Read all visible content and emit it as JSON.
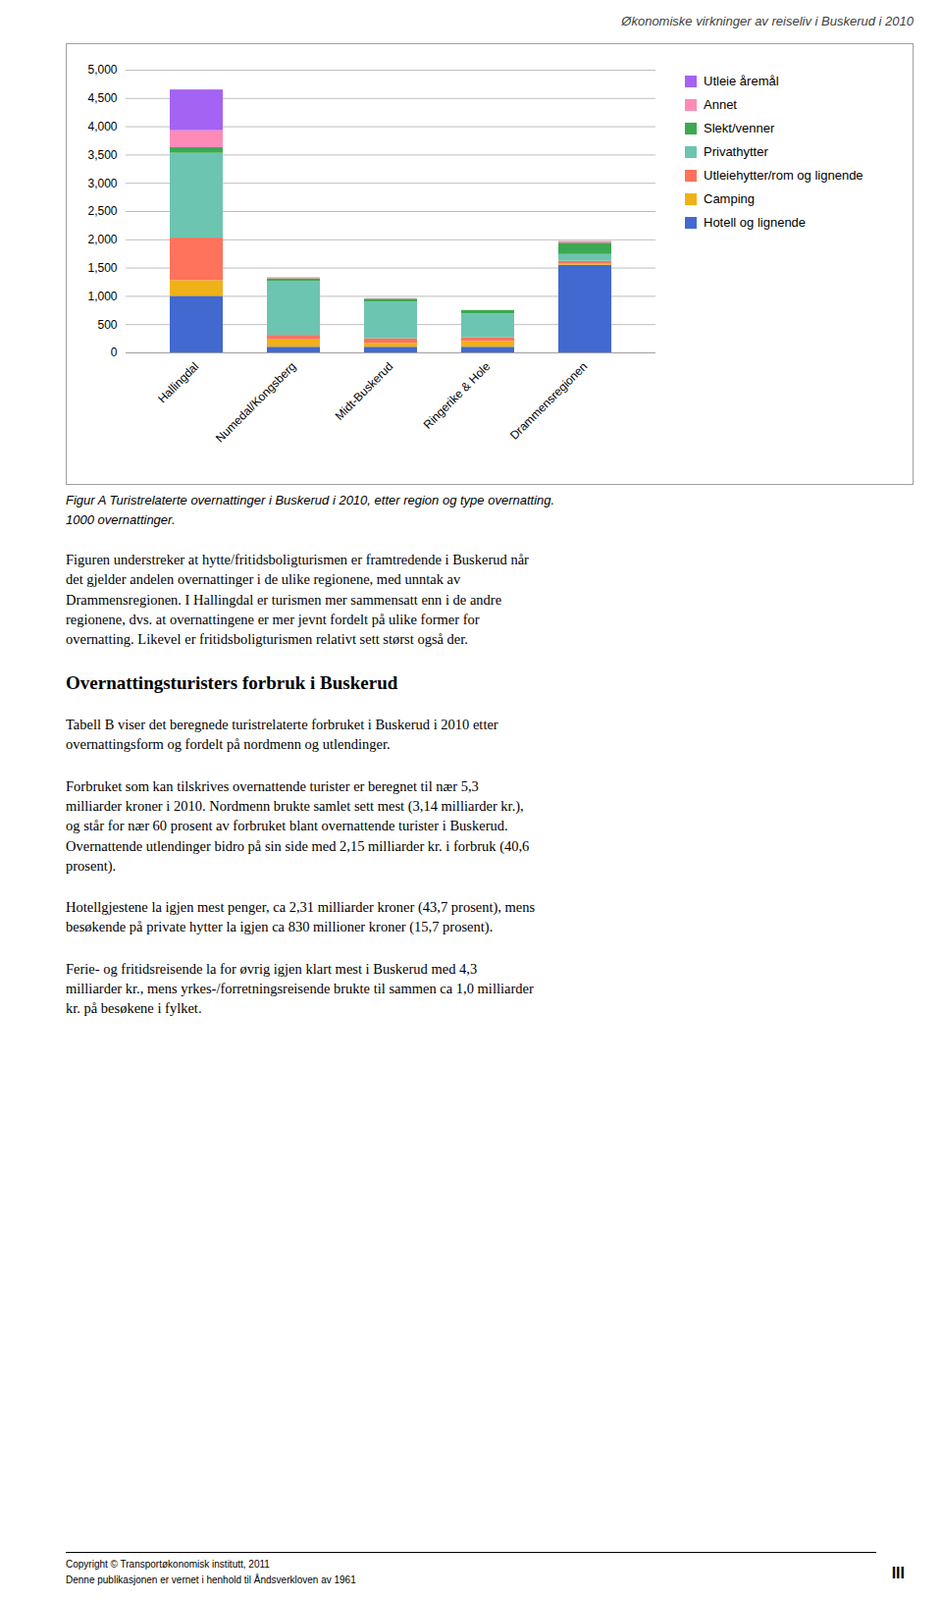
{
  "chart_data": {
    "type": "bar",
    "stacked": true,
    "title": "Økonomiske virkninger av reiseliv i Buskerud i 2010",
    "categories": [
      "Hallingdal",
      "Numedal/Kongsberg",
      "Midt-Buskerud",
      "Ringerike & Hole",
      "Drammensregionen"
    ],
    "series": [
      {
        "name": "Hotell og lignende",
        "values": [
          1000,
          100,
          100,
          100,
          1550
        ]
      },
      {
        "name": "Camping",
        "values": [
          280,
          130,
          70,
          100,
          30
        ]
      },
      {
        "name": "Utleiehytter/rom og lignende",
        "values": [
          750,
          80,
          80,
          70,
          40
        ]
      },
      {
        "name": "Privathytter",
        "values": [
          1500,
          950,
          650,
          420,
          120
        ]
      },
      {
        "name": "Slekt/venner",
        "values": [
          100,
          50,
          50,
          60,
          200
        ]
      },
      {
        "name": "Annet",
        "values": [
          300,
          20,
          10,
          0,
          30
        ]
      },
      {
        "name": "Utleie åremål",
        "values": [
          720,
          0,
          0,
          0,
          0
        ]
      }
    ],
    "ylim": [
      0,
      5000
    ],
    "yticks": [
      0,
      500,
      1000,
      1500,
      2000,
      2500,
      3000,
      3500,
      4000,
      4500,
      5000
    ],
    "grid": true,
    "legend": "right"
  },
  "page": {
    "caption": [
      "Figur A Turistrelaterte overnattinger i Buskerud i 2010, etter region og type overnatting.",
      "1000 overnattinger."
    ],
    "body": [
      {
        "paragraph": "Figuren understreker at hytte/fritidsboligturismen er framtredende i Buskerud når\ndet gjelder andelen overnattinger i de ulike regionene, med unntak av\nDrammensregionen. I Hallingdal er turismen mer sammensatt enn i de andre\nregionene, dvs. at overnattingene er mer jevnt fordelt på ulike former for\novernatting. Likevel er fritidsboligturismen relativt sett størst også der."
      },
      {
        "heading": "Overnattingsturisters forbruk i Buskerud"
      },
      {
        "paragraph": "Tabell B viser det beregnede turistrelaterte forbruket i Buskerud i 2010 etter\novernattingsform og fordelt på nordmenn og utlendinger."
      },
      {
        "paragraph": "Forbruket som kan tilskrives overnattende turister er beregnet til nær 5,3\nmilliarder kroner i 2010. Nordmenn brukte samlet sett mest (3,14 milliarder kr.),\nog står for nær 60 prosent av forbruket blant overnattende turister i Buskerud.\nOvernattende utlendinger bidro på sin side med 2,15 milliarder kr. i forbruk (40,6\nprosent)."
      },
      {
        "paragraph": "Hotellgjestene la igjen mest penger, ca 2,31 milliarder kroner (43,7 prosent), mens\nbesøkende på private hytter la igjen ca 830 millioner kroner (15,7 prosent)."
      },
      {
        "paragraph": "Ferie- og fritidsreisende la for øvrig igjen klart mest i Buskerud med 4,3\nmilliarder kr., mens yrkes-/forretningsreisende brukte til sammen ca 1,0 milliarder\nkr. på besøkene i fylket."
      }
    ],
    "footer": [
      "Copyright © Transportøkonomisk institutt, 2011",
      "Denne publikasjonen er vernet i henhold til Åndsverkloven av 1961"
    ],
    "page_number": "III"
  }
}
